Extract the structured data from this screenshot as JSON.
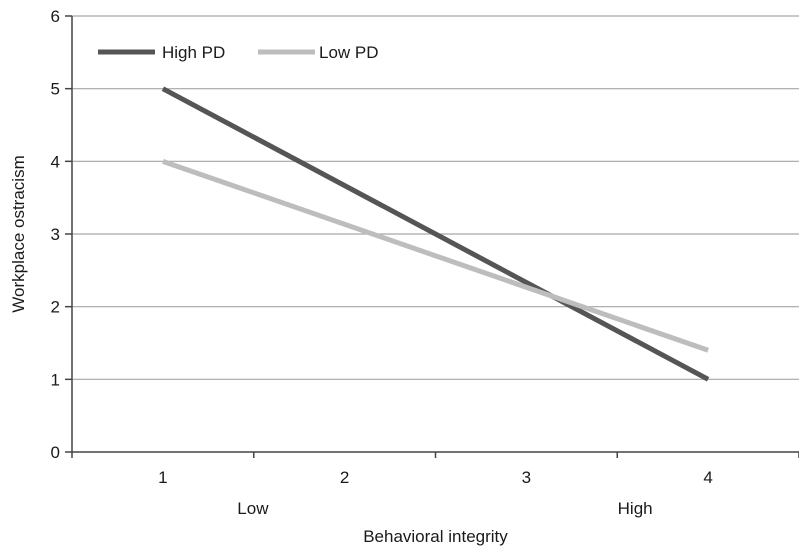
{
  "chart_data": {
    "type": "line",
    "title": "",
    "xlabel": "Behavioral integrity",
    "ylabel": "Workplace ostracism",
    "x": [
      1,
      2,
      3,
      4
    ],
    "x_ticks": [
      "1",
      "2",
      "3",
      "4"
    ],
    "x_range_labels": [
      "Low",
      "High"
    ],
    "ylim": [
      0,
      6
    ],
    "y_ticks": [
      "0",
      "1",
      "2",
      "3",
      "4",
      "5",
      "6"
    ],
    "grid": true,
    "legend_position": "top-left",
    "series": [
      {
        "name": "High PD",
        "color": "#555555",
        "points": [
          [
            1,
            5
          ],
          [
            4,
            1
          ]
        ]
      },
      {
        "name": "Low PD",
        "color": "#bdbdbd",
        "points": [
          [
            1,
            4
          ],
          [
            4,
            1.4
          ]
        ]
      }
    ]
  }
}
